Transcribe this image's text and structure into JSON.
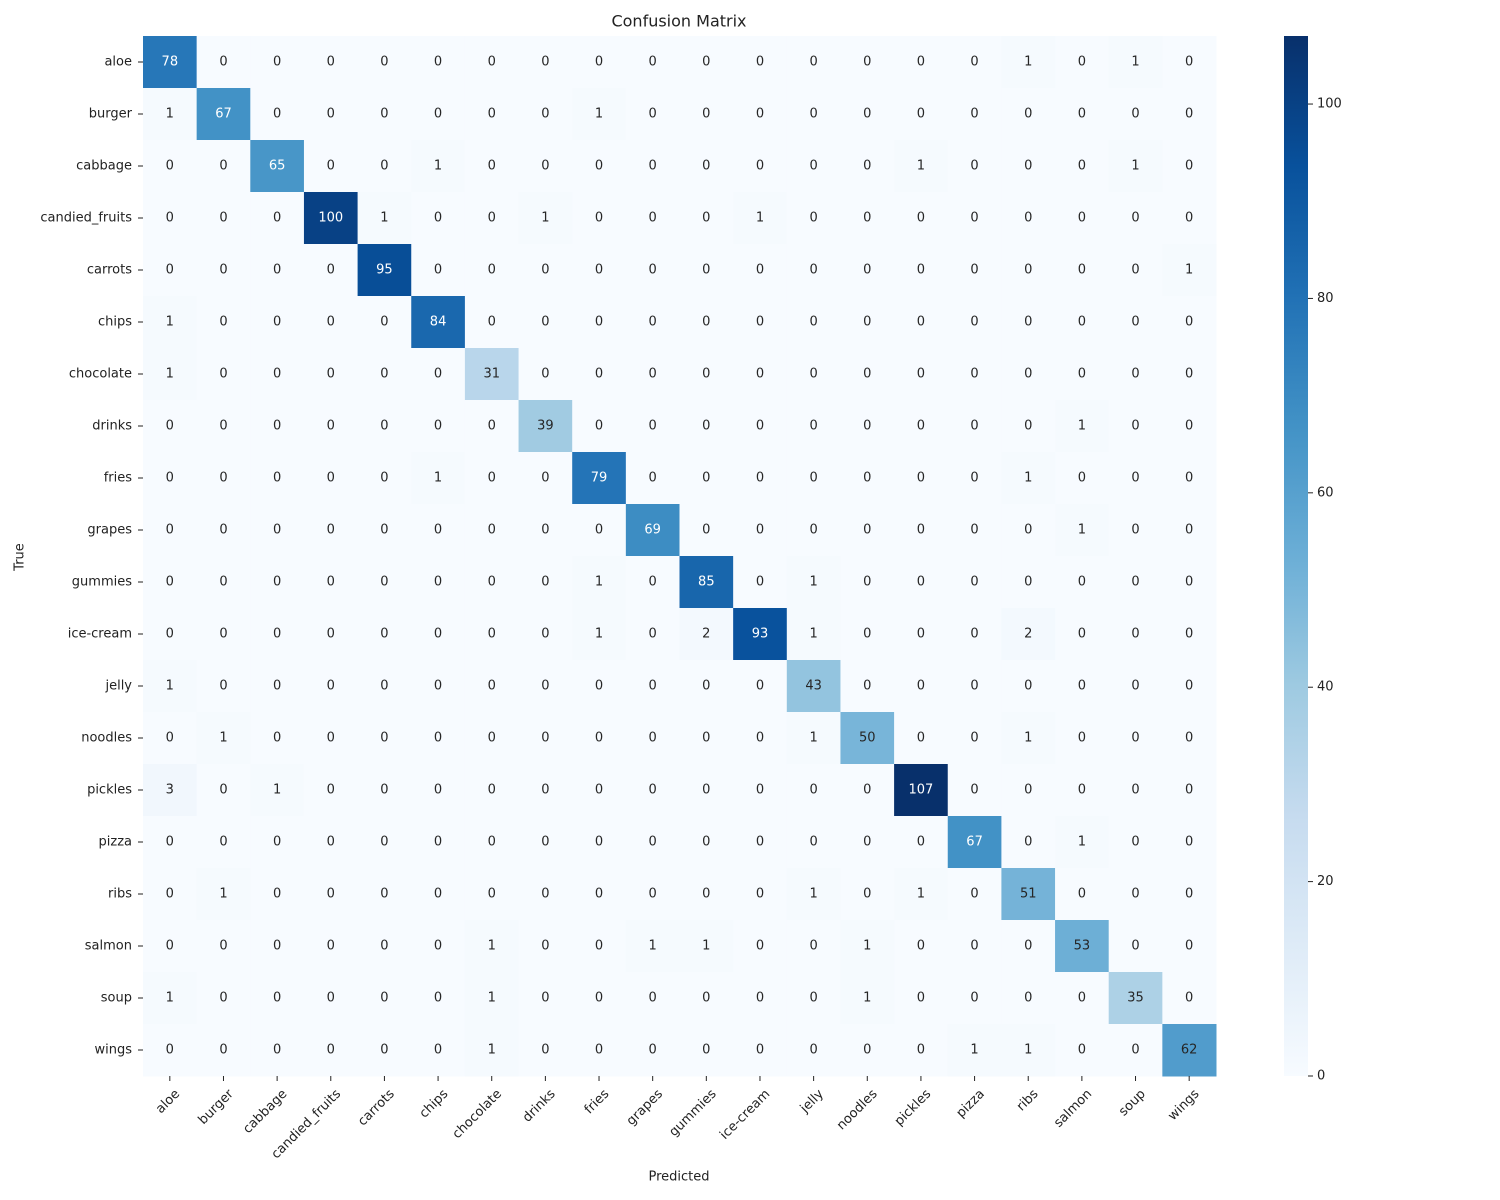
{
  "chart_data": {
    "type": "heatmap",
    "title": "Confusion Matrix",
    "x_label": "Predicted",
    "y_label": "True",
    "categories": [
      "aloe",
      "burger",
      "cabbage",
      "candied_fruits",
      "carrots",
      "chips",
      "chocolate",
      "drinks",
      "fries",
      "grapes",
      "gummies",
      "ice-cream",
      "jelly",
      "noodles",
      "pickles",
      "pizza",
      "ribs",
      "salmon",
      "soup",
      "wings"
    ],
    "values": [
      [
        78,
        0,
        0,
        0,
        0,
        0,
        0,
        0,
        0,
        0,
        0,
        0,
        0,
        0,
        0,
        0,
        1,
        0,
        1,
        0
      ],
      [
        1,
        67,
        0,
        0,
        0,
        0,
        0,
        0,
        1,
        0,
        0,
        0,
        0,
        0,
        0,
        0,
        0,
        0,
        0,
        0
      ],
      [
        0,
        0,
        65,
        0,
        0,
        1,
        0,
        0,
        0,
        0,
        0,
        0,
        0,
        0,
        1,
        0,
        0,
        0,
        1,
        0
      ],
      [
        0,
        0,
        0,
        100,
        1,
        0,
        0,
        1,
        0,
        0,
        0,
        1,
        0,
        0,
        0,
        0,
        0,
        0,
        0,
        0
      ],
      [
        0,
        0,
        0,
        0,
        95,
        0,
        0,
        0,
        0,
        0,
        0,
        0,
        0,
        0,
        0,
        0,
        0,
        0,
        0,
        1
      ],
      [
        1,
        0,
        0,
        0,
        0,
        84,
        0,
        0,
        0,
        0,
        0,
        0,
        0,
        0,
        0,
        0,
        0,
        0,
        0,
        0
      ],
      [
        1,
        0,
        0,
        0,
        0,
        0,
        31,
        0,
        0,
        0,
        0,
        0,
        0,
        0,
        0,
        0,
        0,
        0,
        0,
        0
      ],
      [
        0,
        0,
        0,
        0,
        0,
        0,
        0,
        39,
        0,
        0,
        0,
        0,
        0,
        0,
        0,
        0,
        0,
        1,
        0,
        0
      ],
      [
        0,
        0,
        0,
        0,
        0,
        1,
        0,
        0,
        79,
        0,
        0,
        0,
        0,
        0,
        0,
        0,
        1,
        0,
        0,
        0
      ],
      [
        0,
        0,
        0,
        0,
        0,
        0,
        0,
        0,
        0,
        69,
        0,
        0,
        0,
        0,
        0,
        0,
        0,
        1,
        0,
        0
      ],
      [
        0,
        0,
        0,
        0,
        0,
        0,
        0,
        0,
        1,
        0,
        85,
        0,
        1,
        0,
        0,
        0,
        0,
        0,
        0,
        0
      ],
      [
        0,
        0,
        0,
        0,
        0,
        0,
        0,
        0,
        1,
        0,
        2,
        93,
        1,
        0,
        0,
        0,
        2,
        0,
        0,
        0
      ],
      [
        1,
        0,
        0,
        0,
        0,
        0,
        0,
        0,
        0,
        0,
        0,
        0,
        43,
        0,
        0,
        0,
        0,
        0,
        0,
        0
      ],
      [
        0,
        1,
        0,
        0,
        0,
        0,
        0,
        0,
        0,
        0,
        0,
        0,
        1,
        50,
        0,
        0,
        1,
        0,
        0,
        0
      ],
      [
        3,
        0,
        1,
        0,
        0,
        0,
        0,
        0,
        0,
        0,
        0,
        0,
        0,
        0,
        107,
        0,
        0,
        0,
        0,
        0
      ],
      [
        0,
        0,
        0,
        0,
        0,
        0,
        0,
        0,
        0,
        0,
        0,
        0,
        0,
        0,
        0,
        67,
        0,
        1,
        0,
        0
      ],
      [
        0,
        1,
        0,
        0,
        0,
        0,
        0,
        0,
        0,
        0,
        0,
        0,
        1,
        0,
        1,
        0,
        51,
        0,
        0,
        0
      ],
      [
        0,
        0,
        0,
        0,
        0,
        0,
        1,
        0,
        0,
        1,
        1,
        0,
        0,
        1,
        0,
        0,
        0,
        53,
        0,
        0
      ],
      [
        1,
        0,
        0,
        0,
        0,
        0,
        1,
        0,
        0,
        0,
        0,
        0,
        0,
        1,
        0,
        0,
        0,
        0,
        35,
        0
      ],
      [
        0,
        0,
        0,
        0,
        0,
        0,
        1,
        0,
        0,
        0,
        0,
        0,
        0,
        0,
        0,
        1,
        1,
        0,
        0,
        62
      ]
    ],
    "colormap": "Blues",
    "zlim": [
      0,
      107
    ],
    "zticks": [
      0,
      20,
      40,
      60,
      80,
      100
    ]
  }
}
